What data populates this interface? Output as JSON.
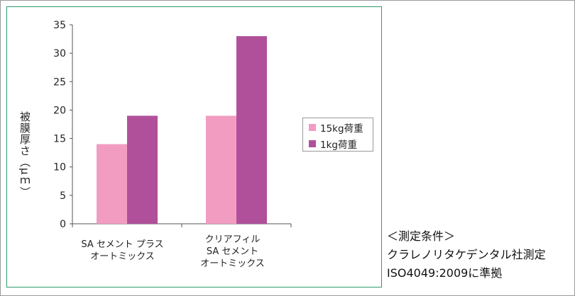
{
  "chart_data": {
    "type": "bar",
    "categories": [
      "SA セメント プラス\nオートミックス",
      "クリアフィル\nSA セメント\nオートミックス"
    ],
    "series": [
      {
        "name": "15kg荷重",
        "values": [
          14,
          19
        ],
        "color": "#f29cc2"
      },
      {
        "name": "1kg荷重",
        "values": [
          19,
          33
        ],
        "color": "#b0509b"
      }
    ],
    "ylabel": "被膜厚さ（μｍ）",
    "ylim": [
      0,
      35
    ],
    "yticks": [
      0,
      5,
      10,
      15,
      20,
      25,
      30,
      35
    ],
    "grid": false,
    "legend_position": "right"
  },
  "notes": {
    "line1": "＜測定条件＞",
    "line2": "クラレノリタケデンタル社測定",
    "line3": "ISO4049:2009に準拠"
  }
}
